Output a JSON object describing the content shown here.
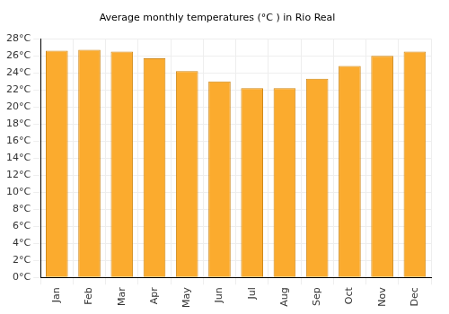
{
  "chart_data": {
    "type": "bar",
    "title": "Average monthly temperatures (°C ) in Rio Real",
    "categories": [
      "Jan",
      "Feb",
      "Mar",
      "Apr",
      "May",
      "Jun",
      "Jul",
      "Aug",
      "Sep",
      "Oct",
      "Nov",
      "Dec"
    ],
    "values": [
      26.6,
      26.7,
      26.5,
      25.7,
      24.2,
      23.0,
      22.2,
      22.2,
      23.3,
      24.8,
      26.0,
      26.5
    ],
    "color": "#fbab2e",
    "ylim": [
      0,
      28
    ],
    "yticks": [
      {
        "value": 0,
        "label": "0°C"
      },
      {
        "value": 2,
        "label": "2°C"
      },
      {
        "value": 4,
        "label": "4°C"
      },
      {
        "value": 6,
        "label": "6°C"
      },
      {
        "value": 8,
        "label": "8°C"
      },
      {
        "value": 10,
        "label": "10°C"
      },
      {
        "value": 12,
        "label": "12°C"
      },
      {
        "value": 14,
        "label": "14°C"
      },
      {
        "value": 16,
        "label": "16°C"
      },
      {
        "value": 18,
        "label": "18°C"
      },
      {
        "value": 20,
        "label": "20°C"
      },
      {
        "value": 22,
        "label": "22°C"
      },
      {
        "value": 24,
        "label": "24°C"
      },
      {
        "value": 26,
        "label": "26°C"
      },
      {
        "value": 28,
        "label": "28°C"
      }
    ],
    "grid": true
  }
}
